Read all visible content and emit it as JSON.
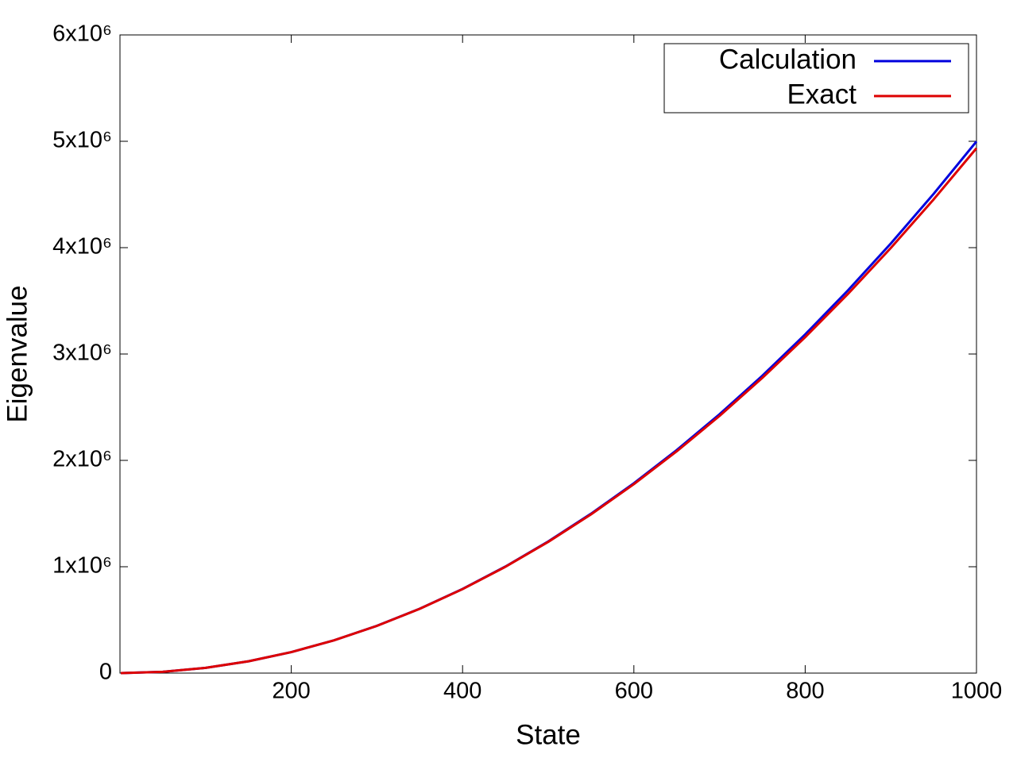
{
  "chart_data": {
    "type": "line",
    "x_label": "State",
    "y_label": "Eigenvalue",
    "x": [
      1,
      50,
      100,
      150,
      200,
      250,
      300,
      350,
      400,
      450,
      500,
      550,
      600,
      650,
      700,
      750,
      800,
      850,
      900,
      950,
      1000
    ],
    "series": [
      {
        "name": "Calculation",
        "color": "#0000dd",
        "values": [
          5,
          12337,
          49354,
          111065,
          197495,
          308676,
          444652,
          605476,
          791210,
          1001928,
          1237710,
          1498647,
          1784842,
          2096404,
          2433455,
          2796124,
          3184549,
          3598881,
          4039278,
          4505911,
          4998952
        ]
      },
      {
        "name": "Exact",
        "color": "#dd0000",
        "values": [
          5,
          12337,
          49348,
          111033,
          197392,
          308425,
          444132,
          604513,
          789568,
          999297,
          1233700,
          1492777,
          1776528,
          2084953,
          2418052,
          2775825,
          3158272,
          3565393,
          3997188,
          4453657,
          4934800
        ]
      }
    ],
    "xlim": [
      0,
      1000
    ],
    "xticks": [
      200,
      400,
      600,
      800,
      1000
    ],
    "ylim": [
      0,
      6000000
    ],
    "yticks": [
      0,
      {
        "value": 1000000,
        "label": "1x10⁶"
      },
      {
        "value": 2000000,
        "label": "2x10⁶"
      },
      {
        "value": 3000000,
        "label": "3x10⁶"
      },
      {
        "value": 4000000,
        "label": "4x10⁶"
      },
      {
        "value": 5000000,
        "label": "5x10⁶"
      },
      {
        "value": 6000000,
        "label": "6x10⁶"
      }
    ],
    "legend": "top-right",
    "grid": false
  }
}
